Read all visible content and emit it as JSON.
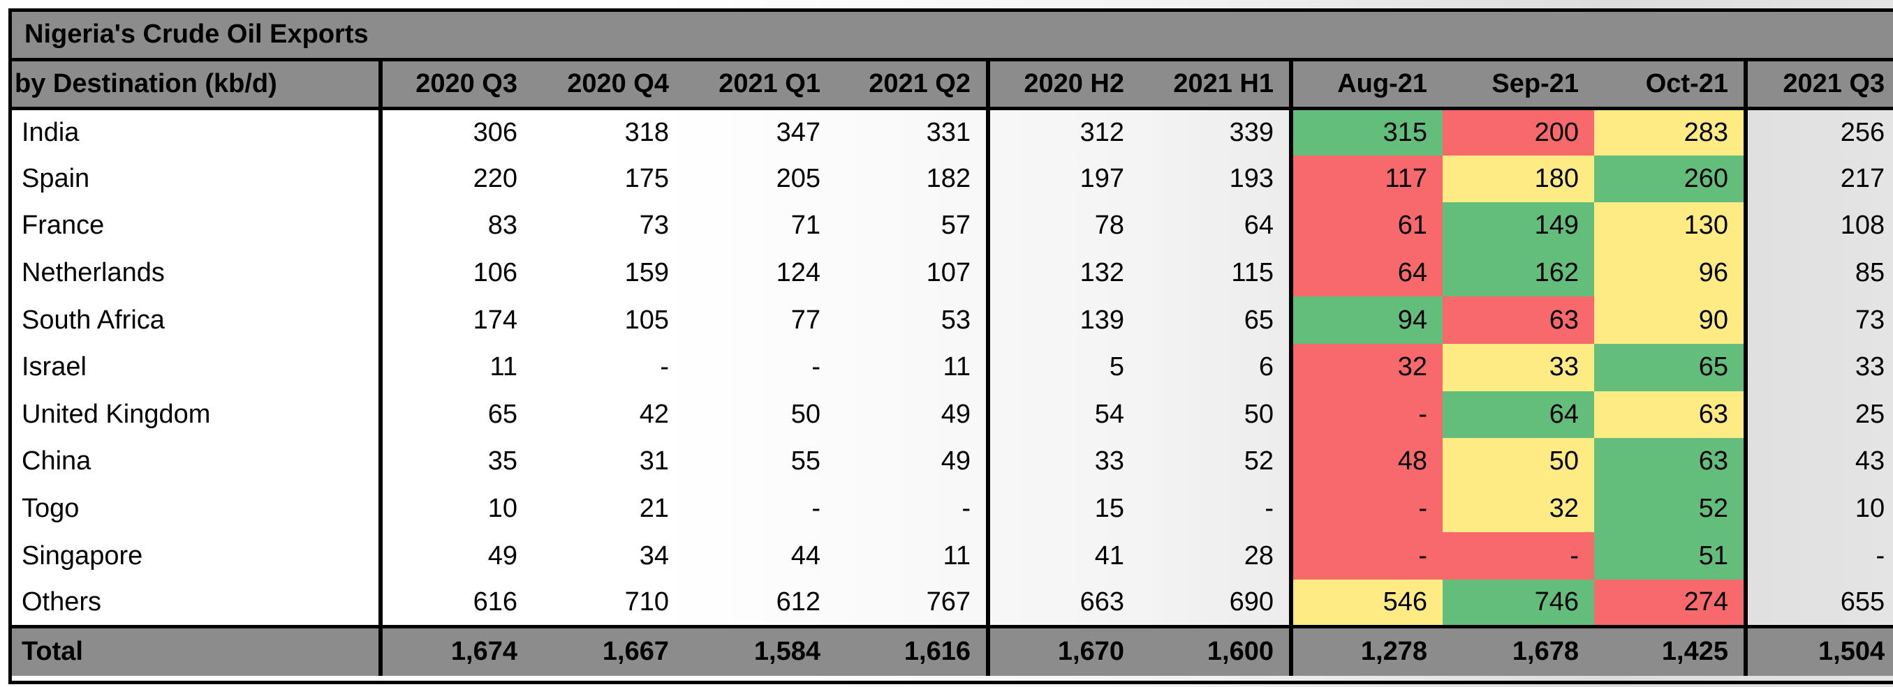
{
  "title": "Nigeria's Crude Oil Exports",
  "header_first": "by Destination (kb/d)",
  "colors": {
    "green": "#63be7b",
    "red": "#f8696b",
    "yellow": "#ffeb84",
    "header_grey": "#8c8c8c"
  },
  "chart_data": {
    "type": "table",
    "title": "Nigeria's Crude Oil Exports",
    "columns": [
      "2020 Q3",
      "2020 Q4",
      "2021 Q1",
      "2021 Q2",
      "2020 H2",
      "2021 H1",
      "Aug-21",
      "Sep-21",
      "Oct-21",
      "2021 Q3"
    ],
    "rows": [
      {
        "name": "India",
        "values": [
          "306",
          "318",
          "347",
          "331",
          "312",
          "339",
          "315",
          "200",
          "283",
          "256"
        ],
        "heat": [
          "green",
          "red",
          "yellow"
        ]
      },
      {
        "name": "Spain",
        "values": [
          "220",
          "175",
          "205",
          "182",
          "197",
          "193",
          "117",
          "180",
          "260",
          "217"
        ],
        "heat": [
          "red",
          "yellow",
          "green"
        ]
      },
      {
        "name": "France",
        "values": [
          "83",
          "73",
          "71",
          "57",
          "78",
          "64",
          "61",
          "149",
          "130",
          "108"
        ],
        "heat": [
          "red",
          "green",
          "yellow"
        ]
      },
      {
        "name": "Netherlands",
        "values": [
          "106",
          "159",
          "124",
          "107",
          "132",
          "115",
          "64",
          "162",
          "96",
          "85"
        ],
        "heat": [
          "red",
          "green",
          "yellow"
        ]
      },
      {
        "name": "South Africa",
        "values": [
          "174",
          "105",
          "77",
          "53",
          "139",
          "65",
          "94",
          "63",
          "90",
          "73"
        ],
        "heat": [
          "green",
          "red",
          "yellow"
        ]
      },
      {
        "name": "Israel",
        "values": [
          "11",
          "-",
          "-",
          "11",
          "5",
          "6",
          "32",
          "33",
          "65",
          "33"
        ],
        "heat": [
          "red",
          "yellow",
          "green"
        ]
      },
      {
        "name": "United Kingdom",
        "values": [
          "65",
          "42",
          "50",
          "49",
          "54",
          "50",
          "-",
          "64",
          "63",
          "25"
        ],
        "heat": [
          "red",
          "green",
          "yellow"
        ]
      },
      {
        "name": "China",
        "values": [
          "35",
          "31",
          "55",
          "49",
          "33",
          "52",
          "48",
          "50",
          "63",
          "43"
        ],
        "heat": [
          "red",
          "yellow",
          "green"
        ]
      },
      {
        "name": "Togo",
        "values": [
          "10",
          "21",
          "-",
          "-",
          "15",
          "-",
          "-",
          "32",
          "52",
          "10"
        ],
        "heat": [
          "red",
          "yellow",
          "green"
        ]
      },
      {
        "name": "Singapore",
        "values": [
          "49",
          "34",
          "44",
          "11",
          "41",
          "28",
          "-",
          "-",
          "51",
          "-"
        ],
        "heat": [
          "red",
          "red",
          "green"
        ]
      },
      {
        "name": "Others",
        "values": [
          "616",
          "710",
          "612",
          "767",
          "663",
          "690",
          "546",
          "746",
          "274",
          "655"
        ],
        "heat": [
          "yellow",
          "green",
          "red"
        ]
      }
    ],
    "total": {
      "name": "Total",
      "values": [
        "1,674",
        "1,667",
        "1,584",
        "1,616",
        "1,670",
        "1,600",
        "1,278",
        "1,678",
        "1,425",
        "1,504"
      ]
    }
  }
}
